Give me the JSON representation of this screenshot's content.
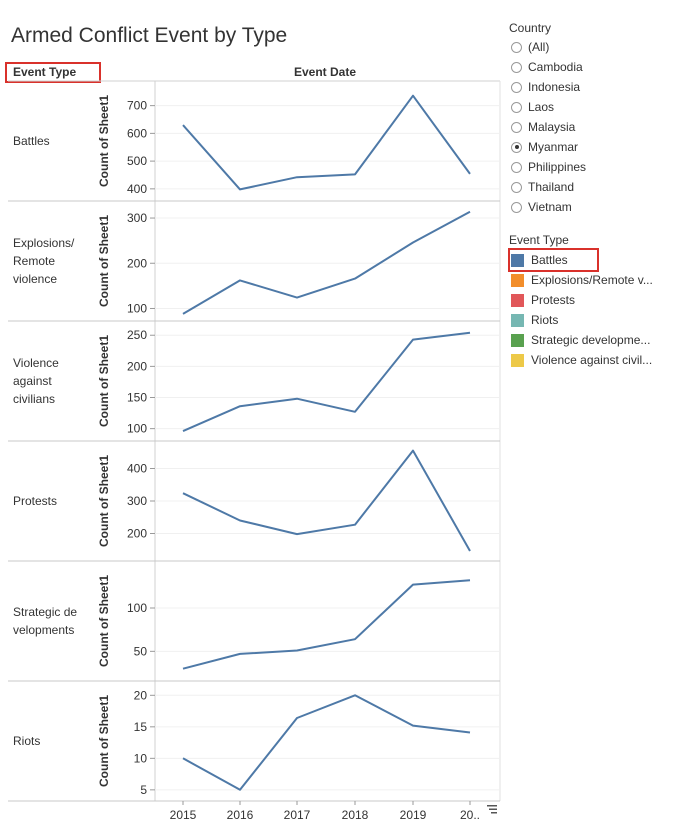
{
  "title": "Armed Conflict Event by Type",
  "headers": {
    "row_dim": "Event Type",
    "col_dim": "Event Date"
  },
  "country_filter": {
    "title": "Country",
    "options": [
      "(All)",
      "Cambodia",
      "Indonesia",
      "Laos",
      "Malaysia",
      "Myanmar",
      "Philippines",
      "Thailand",
      "Vietnam"
    ],
    "selected": "Myanmar"
  },
  "event_type_legend": {
    "title": "Event Type",
    "items": [
      {
        "label": "Battles",
        "color": "#4e79a7"
      },
      {
        "label": "Explosions/Remote v...",
        "color": "#f28e2b"
      },
      {
        "label": "Protests",
        "color": "#e15759"
      },
      {
        "label": "Riots",
        "color": "#76b7b2"
      },
      {
        "label": "Strategic developme...",
        "color": "#59a14f"
      },
      {
        "label": "Violence against civil...",
        "color": "#edc948"
      }
    ],
    "selected": "Battles"
  },
  "chart_data": {
    "type": "line",
    "x": [
      "2015",
      "2016",
      "2017",
      "2018",
      "2019",
      "20.."
    ],
    "y_axis_label": "Count of Sheet1",
    "line_color": "#4e79a7",
    "panels": [
      {
        "label": "Battles",
        "ticks": [
          700,
          600,
          500,
          400
        ],
        "ylim": [
          385,
          760
        ],
        "values": [
          630,
          398,
          442,
          452,
          736,
          454
        ]
      },
      {
        "label": "Explosions/ Remote violence",
        "ticks": [
          300,
          200,
          100
        ],
        "ylim": [
          90,
          320
        ],
        "values": [
          88,
          162,
          124,
          166,
          246,
          314
        ]
      },
      {
        "label": "Violence against civilians",
        "ticks": [
          250,
          200,
          150,
          100
        ],
        "ylim": [
          93,
          260
        ],
        "values": [
          96,
          136,
          148,
          127,
          243,
          254
        ]
      },
      {
        "label": "Protests",
        "ticks": [
          400,
          300,
          200
        ],
        "ylim": [
          140,
          460
        ],
        "values": [
          324,
          240,
          198,
          227,
          455,
          146
        ]
      },
      {
        "label": "Strategic de velopments",
        "ticks": [
          100,
          50
        ],
        "ylim": [
          25,
          145
        ],
        "values": [
          30,
          47,
          51,
          64,
          127,
          132
        ]
      },
      {
        "label": "Riots",
        "ticks": [
          20,
          15,
          10,
          5
        ],
        "ylim": [
          4.5,
          21
        ],
        "values": [
          10,
          5,
          16.4,
          20,
          15.2,
          14.1
        ]
      }
    ]
  }
}
